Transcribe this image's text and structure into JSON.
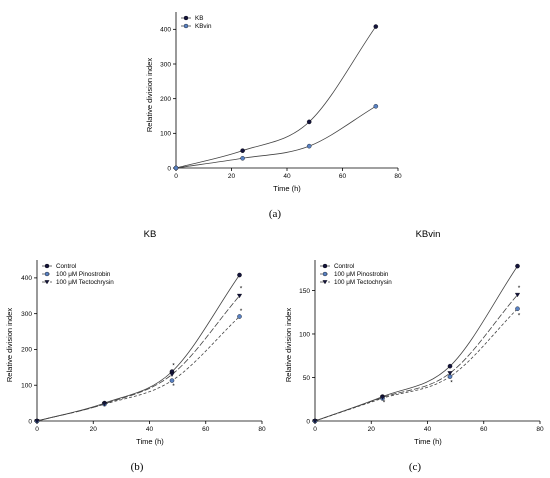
{
  "chart_data": [
    {
      "panel_label": "(a)",
      "type": "line",
      "title": "",
      "xlabel": "Time (h)",
      "ylabel": "Relative division index",
      "xlim": [
        0,
        80
      ],
      "ylim": [
        0,
        450
      ],
      "xticks": [
        0,
        20,
        40,
        60,
        80
      ],
      "yticks": [
        0,
        100,
        200,
        300,
        400
      ],
      "legend": "top-left",
      "x": [
        0,
        24,
        48,
        72
      ],
      "series": [
        {
          "name": "KB",
          "values": [
            0,
            50,
            133,
            408
          ],
          "color": "#14143c",
          "marker": "circle",
          "dash": ""
        },
        {
          "name": "KBvin",
          "values": [
            0,
            28,
            63,
            178
          ],
          "color": "#5a82c3",
          "marker": "circle",
          "dash": ""
        }
      ],
      "annotations": []
    },
    {
      "panel_label": "(b)",
      "type": "line",
      "title": "KB",
      "xlabel": "Time (h)",
      "ylabel": "Relative division index",
      "xlim": [
        0,
        80
      ],
      "ylim": [
        0,
        450
      ],
      "xticks": [
        0,
        20,
        40,
        60,
        80
      ],
      "yticks": [
        0,
        100,
        200,
        300,
        400
      ],
      "legend": "top-left",
      "x": [
        0,
        24,
        48,
        72
      ],
      "series": [
        {
          "name": "Control",
          "values": [
            0,
            50,
            138,
            408
          ],
          "color": "#14143c",
          "marker": "circle",
          "dash": ""
        },
        {
          "name": "100 μM Pinostrobin",
          "values": [
            0,
            47,
            113,
            292
          ],
          "color": "#5a82c3",
          "marker": "circle",
          "dash": "3,2"
        },
        {
          "name": "100 μM Tectochrysin",
          "values": [
            0,
            48,
            130,
            350
          ],
          "color": "#14143c",
          "marker": "triangle-down",
          "dash": "6,2"
        }
      ],
      "annotations": [
        {
          "text": "*",
          "x": 48,
          "y": 155
        },
        {
          "text": "*",
          "x": 48,
          "y": 98
        },
        {
          "text": "*",
          "x": 72,
          "y": 370
        },
        {
          "text": "*",
          "x": 72,
          "y": 308
        }
      ]
    },
    {
      "panel_label": "(c)",
      "type": "line",
      "title": "KBvin",
      "xlabel": "Time (h)",
      "ylabel": "Relative division index",
      "xlim": [
        0,
        80
      ],
      "ylim": [
        0,
        185
      ],
      "xticks": [
        0,
        20,
        40,
        60,
        80
      ],
      "yticks": [
        0,
        50,
        100,
        150
      ],
      "legend": "top-left",
      "x": [
        0,
        24,
        48,
        72
      ],
      "series": [
        {
          "name": "Control",
          "values": [
            0,
            28,
            63,
            178
          ],
          "color": "#14143c",
          "marker": "circle",
          "dash": ""
        },
        {
          "name": "100 μM Pinostrobin",
          "values": [
            0,
            26,
            51,
            129
          ],
          "color": "#5a82c3",
          "marker": "circle",
          "dash": "3,2"
        },
        {
          "name": "100 μM Tectochrysin",
          "values": [
            0,
            27,
            55,
            145
          ],
          "color": "#14143c",
          "marker": "triangle-down",
          "dash": "6,2"
        }
      ],
      "annotations": [
        {
          "text": "*",
          "x": 24,
          "y": 21
        },
        {
          "text": "*",
          "x": 48,
          "y": 44
        },
        {
          "text": "*",
          "x": 72,
          "y": 153
        },
        {
          "text": "*",
          "x": 72,
          "y": 121
        }
      ]
    }
  ]
}
